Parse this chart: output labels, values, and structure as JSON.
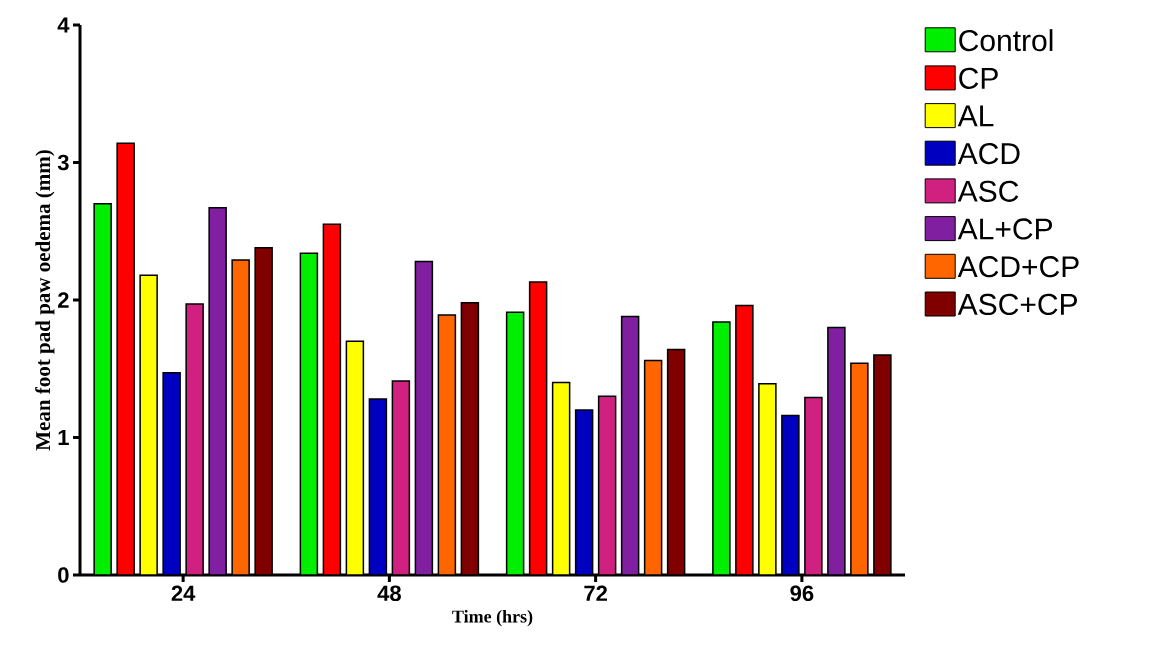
{
  "chart_data": {
    "type": "bar",
    "xlabel": "Time (hrs)",
    "ylabel": "Mean foot pad paw oedema (mm)",
    "categories": [
      "24",
      "48",
      "72",
      "96"
    ],
    "ylim": [
      0,
      4
    ],
    "yticks": [
      0,
      1,
      2,
      3,
      4
    ],
    "grid": false,
    "legend": "right",
    "series": [
      {
        "name": "Control",
        "color": "#00ee00",
        "values": [
          2.7,
          2.34,
          1.91,
          1.84
        ]
      },
      {
        "name": "CP",
        "color": "#ff0000",
        "values": [
          3.14,
          2.55,
          2.13,
          1.96
        ]
      },
      {
        "name": "AL",
        "color": "#ffff00",
        "values": [
          2.18,
          1.7,
          1.4,
          1.39
        ]
      },
      {
        "name": "ACD",
        "color": "#0000c0",
        "values": [
          1.47,
          1.28,
          1.2,
          1.16
        ]
      },
      {
        "name": "ASC",
        "color": "#d02080",
        "values": [
          1.97,
          1.41,
          1.3,
          1.29
        ]
      },
      {
        "name": "AL+CP",
        "color": "#8020a0",
        "values": [
          2.67,
          2.28,
          1.88,
          1.8
        ]
      },
      {
        "name": "ACD+CP",
        "color": "#ff6600",
        "values": [
          2.29,
          1.89,
          1.56,
          1.54
        ]
      },
      {
        "name": "ASC+CP",
        "color": "#800000",
        "values": [
          2.38,
          1.98,
          1.64,
          1.6
        ]
      }
    ]
  }
}
